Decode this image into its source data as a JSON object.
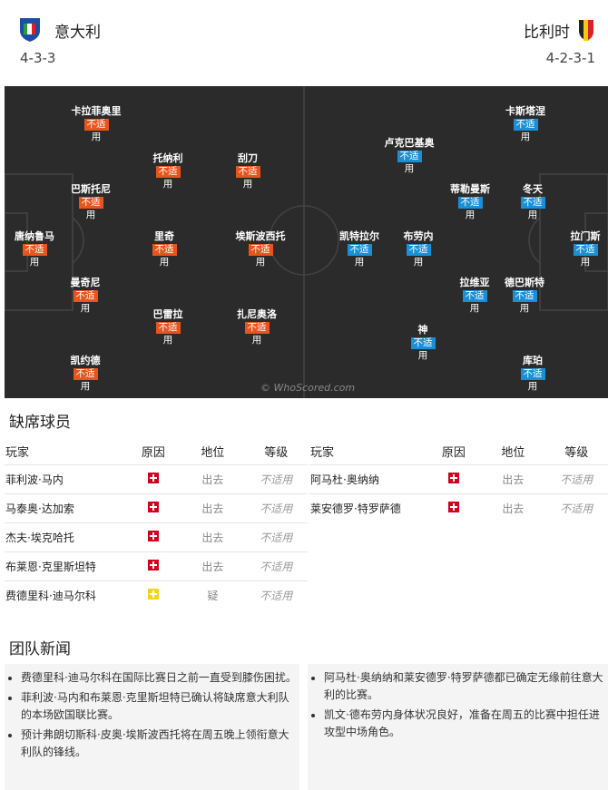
{
  "header": {
    "home": {
      "name": "意大利",
      "formation": "4-3-3"
    },
    "away": {
      "name": "比利时",
      "formation": "4-2-3-1"
    }
  },
  "pitch": {
    "watermark": "© WhoScored.com",
    "home_players": [
      {
        "name": "卡拉菲奥里",
        "tag": "不适",
        "sub": "用"
      },
      {
        "name": "巴斯托尼",
        "tag": "不适",
        "sub": "用"
      },
      {
        "name": "曼奇尼",
        "tag": "不适",
        "sub": "用"
      },
      {
        "name": "凯约德",
        "tag": "不适",
        "sub": "用"
      },
      {
        "name": "托纳利",
        "tag": "不适",
        "sub": "用"
      },
      {
        "name": "里奇",
        "tag": "不适",
        "sub": "用"
      },
      {
        "name": "巴雷拉",
        "tag": "不适",
        "sub": "用"
      },
      {
        "name": "刮刀",
        "tag": "不适",
        "sub": "用"
      },
      {
        "name": "埃斯波西托",
        "tag": "不适",
        "sub": "用"
      },
      {
        "name": "扎尼奥洛",
        "tag": "不适",
        "sub": "用"
      },
      {
        "name": "唐纳鲁马",
        "tag": "不适",
        "sub": "用"
      }
    ],
    "away_players": [
      {
        "name": "卡斯塔涅",
        "tag": "不适",
        "sub": "用"
      },
      {
        "name": "卢克巴基奥",
        "tag": "不适",
        "sub": "用"
      },
      {
        "name": "蒂勒曼斯",
        "tag": "不适",
        "sub": "用"
      },
      {
        "name": "冬天",
        "tag": "不适",
        "sub": "用"
      },
      {
        "name": "凯特拉尔",
        "tag": "不适",
        "sub": "用"
      },
      {
        "name": "布劳内",
        "tag": "不适",
        "sub": "用"
      },
      {
        "name": "拉维亚",
        "tag": "不适",
        "sub": "用"
      },
      {
        "name": "德巴斯特",
        "tag": "不适",
        "sub": "用"
      },
      {
        "name": "神",
        "tag": "不适",
        "sub": "用"
      },
      {
        "name": "库珀",
        "tag": "不适",
        "sub": "用"
      },
      {
        "name": "拉门斯",
        "tag": "不适",
        "sub": "用"
      }
    ],
    "home_color": "#e8541c",
    "away_color": "#1b8fd6"
  },
  "absences": {
    "title": "缺席球员",
    "headers": [
      "玩家",
      "原因",
      "地位",
      "等级"
    ],
    "home": [
      {
        "player": "菲利波·马内",
        "icon_color": "#d0021b",
        "status": "出去",
        "rating": "不适用"
      },
      {
        "player": "马泰奥·达加索",
        "icon_color": "#d0021b",
        "status": "出去",
        "rating": "不适用"
      },
      {
        "player": "杰夫·埃克哈托",
        "icon_color": "#d0021b",
        "status": "出去",
        "rating": "不适用"
      },
      {
        "player": "布莱恩·克里斯坦特",
        "icon_color": "#d0021b",
        "status": "出去",
        "rating": "不适用"
      },
      {
        "player": "费德里科·迪马尔科",
        "icon_color": "#f5d31b",
        "status": "疑",
        "rating": "不适用"
      }
    ],
    "away": [
      {
        "player": "阿马杜·奥纳纳",
        "icon_color": "#d0021b",
        "status": "出去",
        "rating": "不适用"
      },
      {
        "player": "莱安德罗·特罗萨德",
        "icon_color": "#d0021b",
        "status": "出去",
        "rating": "不适用"
      }
    ]
  },
  "news": {
    "title": "团队新闻",
    "home": [
      "费德里科·迪马尔科在国际比赛日之前一直受到膝伤困扰。",
      "菲利波·马内和布莱恩·克里斯坦特已确认将缺席意大利队的本场欧国联比赛。",
      "预计弗朗切斯科·皮奥·埃斯波西托将在周五晚上领衔意大利队的锋线。"
    ],
    "away": [
      "阿马杜·奥纳纳和莱安德罗·特罗萨德都已确定无缘前往意大利的比赛。",
      "凯文·德布劳内身体状况良好，准备在周五的比赛中担任进攻型中场角色。"
    ]
  }
}
